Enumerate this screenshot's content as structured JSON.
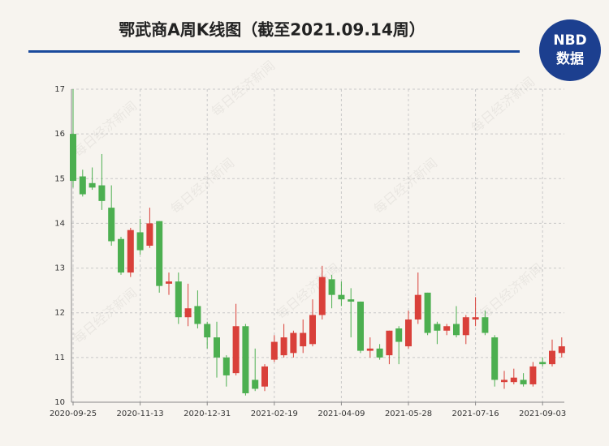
{
  "chart_data": {
    "type": "candlestick",
    "title": "鄂武商A周K线图（截至2021.09.14周）",
    "logo": [
      "NBD",
      "数据"
    ],
    "watermark": "每日经济新闻",
    "categories": [
      "2020-09-25",
      null,
      null,
      null,
      null,
      null,
      null,
      "2020-11-13",
      null,
      null,
      null,
      null,
      null,
      null,
      "2020-12-31",
      null,
      null,
      null,
      null,
      null,
      null,
      "2021-02-19",
      null,
      null,
      null,
      null,
      null,
      null,
      "2021-04-09",
      null,
      null,
      null,
      null,
      null,
      null,
      "2021-05-28",
      null,
      null,
      null,
      null,
      null,
      null,
      "2021-07-16",
      null,
      null,
      null,
      null,
      null,
      null,
      "2021-09-03",
      null,
      null
    ],
    "open": [
      16.0,
      15.05,
      14.9,
      14.85,
      14.35,
      13.65,
      12.9,
      13.8,
      13.5,
      14.05,
      12.65,
      12.7,
      11.9,
      12.15,
      11.75,
      11.45,
      11.0,
      10.65,
      11.7,
      10.5,
      10.35,
      10.95,
      11.05,
      11.1,
      11.25,
      11.3,
      11.95,
      12.75,
      12.4,
      12.3,
      12.25,
      11.15,
      11.2,
      11.05,
      11.65,
      11.25,
      11.85,
      12.45,
      11.75,
      11.6,
      11.75,
      11.5,
      11.85,
      11.9,
      11.45,
      10.45,
      10.45,
      10.5,
      10.4,
      10.9,
      10.85,
      11.1
    ],
    "high": [
      17.0,
      15.2,
      15.25,
      15.55,
      14.85,
      13.7,
      13.9,
      14.1,
      14.35,
      14.05,
      12.9,
      12.9,
      12.65,
      12.5,
      11.8,
      11.8,
      11.05,
      12.2,
      11.75,
      11.2,
      10.85,
      11.5,
      11.75,
      11.6,
      11.85,
      12.3,
      13.05,
      12.85,
      12.7,
      12.55,
      12.25,
      11.45,
      11.3,
      11.6,
      11.7,
      12.05,
      12.9,
      12.45,
      11.8,
      11.75,
      12.15,
      11.95,
      12.35,
      12.05,
      11.5,
      10.7,
      10.75,
      10.65,
      10.9,
      11.0,
      11.4,
      11.45
    ],
    "low": [
      14.8,
      14.6,
      14.75,
      14.3,
      13.5,
      12.85,
      12.8,
      13.3,
      13.45,
      12.45,
      12.4,
      11.75,
      11.7,
      11.65,
      11.2,
      10.55,
      10.35,
      10.6,
      10.15,
      10.25,
      10.25,
      10.9,
      11.0,
      11.0,
      11.1,
      11.25,
      11.85,
      12.1,
      12.15,
      11.45,
      11.1,
      11.0,
      10.95,
      10.85,
      10.85,
      11.2,
      11.75,
      11.5,
      11.3,
      11.5,
      11.45,
      11.3,
      11.7,
      11.5,
      10.35,
      10.3,
      10.4,
      10.35,
      10.35,
      10.8,
      10.8,
      11.0
    ],
    "close": [
      14.95,
      14.65,
      14.8,
      14.5,
      13.6,
      12.9,
      13.85,
      13.4,
      14.0,
      12.6,
      12.7,
      11.9,
      12.1,
      11.75,
      11.45,
      11.0,
      10.6,
      11.7,
      10.2,
      10.3,
      10.8,
      11.35,
      11.45,
      11.55,
      11.55,
      11.95,
      12.8,
      12.4,
      12.3,
      12.25,
      11.15,
      11.2,
      11.0,
      11.6,
      11.35,
      11.85,
      12.4,
      11.55,
      11.6,
      11.7,
      11.5,
      11.9,
      11.9,
      11.55,
      10.5,
      10.5,
      10.55,
      10.4,
      10.8,
      10.85,
      11.15,
      11.25
    ],
    "up_color": "#d9403a",
    "down_color": "#4caf50",
    "ylim": [
      10,
      17
    ],
    "yticks": [
      10,
      11,
      12,
      13,
      14,
      15,
      16,
      17
    ],
    "grid": true
  }
}
